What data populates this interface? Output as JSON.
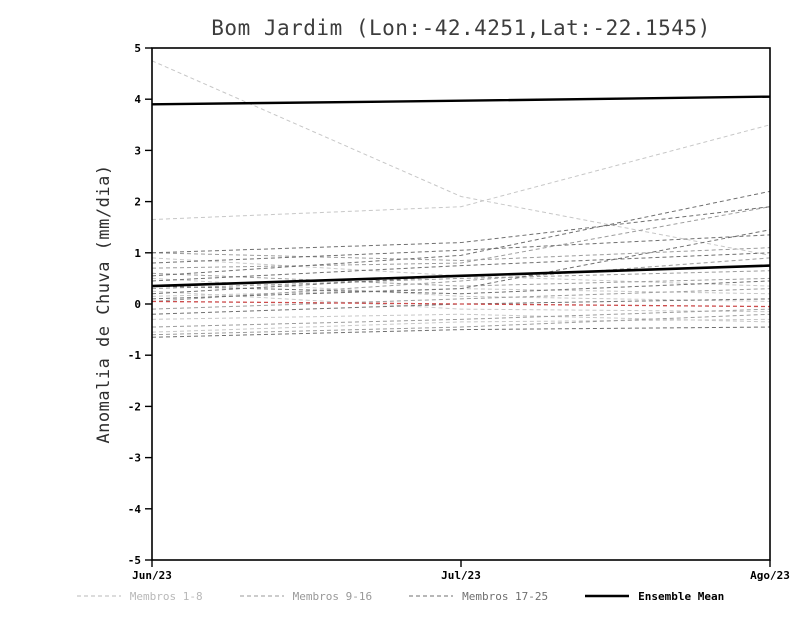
{
  "title": "Bom Jardim (Lon:-42.4251,Lat:-22.1545)",
  "chart_data": {
    "type": "line",
    "x_labels": [
      "Jun/23",
      "Jul/23",
      "Ago/23"
    ],
    "ylabel": "Anomalia de Chuva (mm/dia)",
    "ylim": [
      -5,
      5
    ],
    "yticks": [
      -5,
      -4,
      -3,
      -2,
      -1,
      0,
      1,
      2,
      3,
      4,
      5
    ],
    "grid": false,
    "legend_position": "bottom",
    "groups": [
      {
        "name": "Membros 1-8",
        "color": "#c7c7c7",
        "line_style": "dashed",
        "line_width": 1,
        "members": [
          [
            4.75,
            2.1,
            0.95
          ],
          [
            1.65,
            1.9,
            3.5
          ],
          [
            0.9,
            0.55,
            0.35
          ],
          [
            0.15,
            0.3,
            0.2
          ],
          [
            -0.3,
            -0.2,
            -0.35
          ],
          [
            0.5,
            0.15,
            0.05
          ],
          [
            -0.55,
            -0.35,
            -0.3
          ],
          [
            0.25,
            -0.1,
            -0.15
          ]
        ]
      },
      {
        "name": "Membros 9-16",
        "color": "#9c9c9c",
        "line_style": "dashed",
        "line_width": 1,
        "members": [
          [
            1.0,
            0.85,
            1.1
          ],
          [
            0.7,
            0.8,
            1.9
          ],
          [
            0.3,
            0.5,
            0.65
          ],
          [
            -0.1,
            0.1,
            0.3
          ],
          [
            -0.45,
            -0.3,
            -0.1
          ],
          [
            0.6,
            0.35,
            0.5
          ],
          [
            0.05,
            0.45,
            0.9
          ],
          [
            -0.6,
            -0.45,
            -0.2
          ]
        ]
      },
      {
        "name": "Membros 17-25",
        "color": "#6f6f6f",
        "line_style": "dashed",
        "line_width": 1,
        "members": [
          [
            1.0,
            1.2,
            1.9
          ],
          [
            0.8,
            1.05,
            1.35
          ],
          [
            0.45,
            0.75,
            1.0
          ],
          [
            0.2,
            0.55,
            0.75
          ],
          [
            -0.2,
            0.0,
            0.1
          ],
          [
            0.55,
            0.95,
            2.2
          ],
          [
            -0.65,
            -0.5,
            -0.45
          ],
          [
            0.1,
            0.3,
            1.45
          ],
          [
            0.35,
            0.2,
            0.45
          ]
        ]
      }
    ],
    "reference_lines": [
      {
        "name": "red-reference-line",
        "color": "#cc4c4c",
        "line_style": "dashed",
        "line_width": 1.3,
        "values": [
          0.05,
          0.0,
          -0.05
        ]
      },
      {
        "name": "upper-black-line",
        "color": "#000000",
        "line_style": "solid",
        "line_width": 2.4,
        "values": [
          3.9,
          3.97,
          4.05
        ]
      }
    ],
    "ensemble_mean": {
      "label": "Ensemble Mean",
      "color": "#000000",
      "line_style": "solid",
      "line_width": 2.6,
      "values": [
        0.35,
        0.55,
        0.75
      ]
    }
  },
  "legend": {
    "items": [
      {
        "label": "Membros 1-8",
        "color": "#b8b8b8",
        "line_style": "dashed",
        "line_width": 1,
        "bold": false
      },
      {
        "label": "Membros 9-16",
        "color": "#989898",
        "line_style": "dashed",
        "line_width": 1,
        "bold": false
      },
      {
        "label": "Membros 17-25",
        "color": "#6f6f6f",
        "line_style": "dashed",
        "line_width": 1,
        "bold": false
      },
      {
        "label": "Ensemble Mean",
        "color": "#000000",
        "line_style": "solid",
        "line_width": 2.6,
        "bold": true
      }
    ]
  }
}
